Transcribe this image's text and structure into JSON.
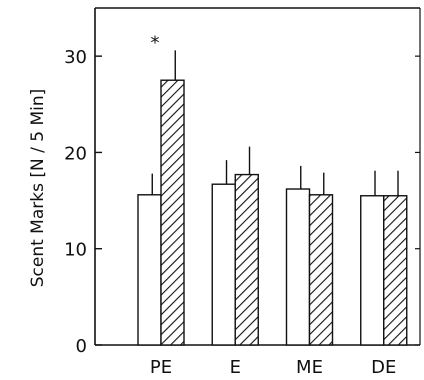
{
  "chart_data": {
    "type": "bar",
    "title": "",
    "xlabel": "",
    "ylabel": "Scent Marks [N / 5 Min]",
    "categories": [
      "PE",
      "E",
      "ME",
      "DE"
    ],
    "ylim": [
      0,
      35
    ],
    "yticks": [
      0,
      10,
      20,
      30
    ],
    "grid": false,
    "legend": "none",
    "series": [
      {
        "pattern": "open",
        "values": [
          15.6,
          16.7,
          16.2,
          15.5
        ],
        "errors": [
          2.2,
          2.5,
          2.4,
          2.6
        ]
      },
      {
        "pattern": "hatched",
        "values": [
          27.5,
          17.7,
          15.6,
          15.5
        ],
        "errors": [
          3.1,
          2.9,
          2.3,
          2.6
        ]
      }
    ],
    "annotations": [
      {
        "text": "*",
        "category": "PE",
        "series": 1
      }
    ]
  }
}
